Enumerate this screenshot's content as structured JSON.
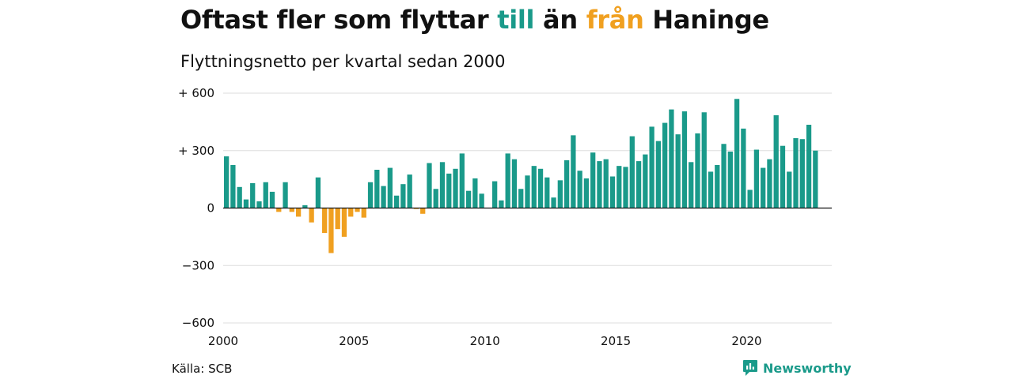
{
  "header": {
    "title_part1": "Oftast fler som flyttar ",
    "title_to": "till",
    "title_part2": " än ",
    "title_from": "från",
    "title_part3": " Haninge",
    "subtitle": "Flyttningsnetto per kvartal sedan 2000"
  },
  "footer": {
    "source": "Källa: SCB",
    "brand": "Newsworthy"
  },
  "colors": {
    "positive": "#1a9a8a",
    "negative": "#f0a020",
    "grid": "#dddddd",
    "baseline": "#111111"
  },
  "chart_data": {
    "type": "bar",
    "title": "Oftast fler som flyttar till än från Haninge",
    "subtitle": "Flyttningsnetto per kvartal sedan 2000",
    "xlabel": "",
    "ylabel": "",
    "ylim": [
      -600,
      600
    ],
    "yticks": [
      600,
      300,
      0,
      -300,
      -600
    ],
    "ytick_labels": [
      "+ 600",
      "+ 300",
      "0",
      "−300",
      "−600"
    ],
    "xlim": [
      2000,
      2023.25
    ],
    "xticks": [
      2000,
      2005,
      2010,
      2015,
      2020
    ],
    "xtick_labels": [
      "2000",
      "2005",
      "2010",
      "2015",
      "2020"
    ],
    "grid": true,
    "legend": "none",
    "x_start_year": 2000,
    "periods_per_year": 4,
    "values": [
      270,
      225,
      110,
      45,
      130,
      35,
      135,
      85,
      -20,
      135,
      -20,
      -45,
      15,
      -75,
      160,
      -130,
      -235,
      -110,
      -150,
      -45,
      -20,
      -50,
      135,
      200,
      115,
      210,
      65,
      125,
      175,
      -5,
      -30,
      235,
      100,
      240,
      180,
      205,
      285,
      90,
      155,
      75,
      0,
      140,
      40,
      285,
      255,
      100,
      170,
      220,
      205,
      160,
      55,
      145,
      250,
      380,
      195,
      155,
      290,
      245,
      255,
      165,
      220,
      215,
      375,
      245,
      280,
      425,
      350,
      445,
      515,
      385,
      505,
      240,
      390,
      500,
      190,
      225,
      335,
      295,
      570,
      415,
      95,
      305,
      210,
      255,
      485,
      325,
      190,
      365,
      360,
      435,
      300
    ]
  }
}
